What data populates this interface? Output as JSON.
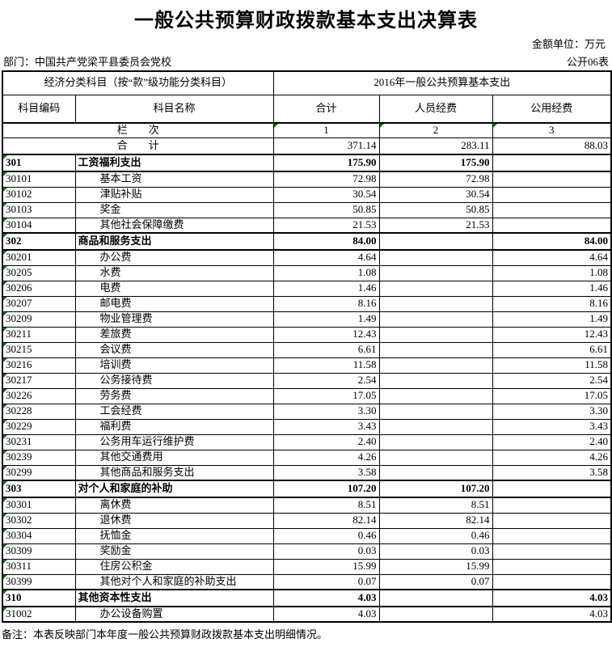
{
  "page": {
    "title": "一般公共预算财政拨款基本支出决算表",
    "unit_label": "金额单位：万元",
    "department": "部门：中国共产党梁平县委员会党校",
    "table_number": "公开06表",
    "note": "备注：本表反映部门本年度一般公共预算财政拨款基本支出明细情况。"
  },
  "table": {
    "header": {
      "left_group": "经济分类科目（按“款”级功能分类科目）",
      "right_group": "2016年一般公共预算基本支出",
      "columns": [
        "科目编码",
        "科目名称",
        "合计",
        "人员经费",
        "公用经费"
      ],
      "lan_ci_label": "栏　　次",
      "col_numbers": [
        "1",
        "2",
        "3"
      ],
      "grand_total_label": "合　　计",
      "grand_totals": {
        "total": "371.14",
        "personnel": "283.11",
        "public": "88.03"
      }
    },
    "rows": [
      {
        "code": "301",
        "name": "工资福利支出",
        "total": "175.90",
        "personnel": "175.90",
        "public": "",
        "section": true
      },
      {
        "code": "30101",
        "name": "基本工资",
        "total": "72.98",
        "personnel": "72.98",
        "public": "",
        "section": false
      },
      {
        "code": "30102",
        "name": "津贴补贴",
        "total": "30.54",
        "personnel": "30.54",
        "public": "",
        "section": false
      },
      {
        "code": "30103",
        "name": "奖金",
        "total": "50.85",
        "personnel": "50.85",
        "public": "",
        "section": false
      },
      {
        "code": "30104",
        "name": "其他社会保障缴费",
        "total": "21.53",
        "personnel": "21.53",
        "public": "",
        "section": false
      },
      {
        "code": "302",
        "name": "商品和服务支出",
        "total": "84.00",
        "personnel": "",
        "public": "84.00",
        "section": true
      },
      {
        "code": "30201",
        "name": "办公费",
        "total": "4.64",
        "personnel": "",
        "public": "4.64",
        "section": false
      },
      {
        "code": "30205",
        "name": "水费",
        "total": "1.08",
        "personnel": "",
        "public": "1.08",
        "section": false
      },
      {
        "code": "30206",
        "name": "电费",
        "total": "1.46",
        "personnel": "",
        "public": "1.46",
        "section": false
      },
      {
        "code": "30207",
        "name": "邮电费",
        "total": "8.16",
        "personnel": "",
        "public": "8.16",
        "section": false
      },
      {
        "code": "30209",
        "name": "物业管理费",
        "total": "1.49",
        "personnel": "",
        "public": "1.49",
        "section": false
      },
      {
        "code": "30211",
        "name": "差旅费",
        "total": "12.43",
        "personnel": "",
        "public": "12.43",
        "section": false
      },
      {
        "code": "30215",
        "name": "会议费",
        "total": "6.61",
        "personnel": "",
        "public": "6.61",
        "section": false
      },
      {
        "code": "30216",
        "name": "培训费",
        "total": "11.58",
        "personnel": "",
        "public": "11.58",
        "section": false
      },
      {
        "code": "30217",
        "name": "公务接待费",
        "total": "2.54",
        "personnel": "",
        "public": "2.54",
        "section": false
      },
      {
        "code": "30226",
        "name": "劳务费",
        "total": "17.05",
        "personnel": "",
        "public": "17.05",
        "section": false
      },
      {
        "code": "30228",
        "name": "工会经费",
        "total": "3.30",
        "personnel": "",
        "public": "3.30",
        "section": false
      },
      {
        "code": "30229",
        "name": "福利费",
        "total": "3.43",
        "personnel": "",
        "public": "3.43",
        "section": false
      },
      {
        "code": "30231",
        "name": "公务用车运行维护费",
        "total": "2.40",
        "personnel": "",
        "public": "2.40",
        "section": false
      },
      {
        "code": "30239",
        "name": "其他交通费用",
        "total": "4.26",
        "personnel": "",
        "public": "4.26",
        "section": false
      },
      {
        "code": "30299",
        "name": "其他商品和服务支出",
        "total": "3.58",
        "personnel": "",
        "public": "3.58",
        "section": false
      },
      {
        "code": "303",
        "name": "对个人和家庭的补助",
        "total": "107.20",
        "personnel": "107.20",
        "public": "",
        "section": true
      },
      {
        "code": "30301",
        "name": "离休费",
        "total": "8.51",
        "personnel": "8.51",
        "public": "",
        "section": false
      },
      {
        "code": "30302",
        "name": "退休费",
        "total": "82.14",
        "personnel": "82.14",
        "public": "",
        "section": false
      },
      {
        "code": "30304",
        "name": "抚恤金",
        "total": "0.46",
        "personnel": "0.46",
        "public": "",
        "section": false
      },
      {
        "code": "30309",
        "name": "奖励金",
        "total": "0.03",
        "personnel": "0.03",
        "public": "",
        "section": false
      },
      {
        "code": "30311",
        "name": "住房公积金",
        "total": "15.99",
        "personnel": "15.99",
        "public": "",
        "section": false
      },
      {
        "code": "30399",
        "name": "其他对个人和家庭的补助支出",
        "total": "0.07",
        "personnel": "0.07",
        "public": "",
        "section": false
      },
      {
        "code": "310",
        "name": "其他资本性支出",
        "total": "4.03",
        "personnel": "",
        "public": "4.03",
        "section": true
      },
      {
        "code": "31002",
        "name": "办公设备购置",
        "total": "4.03",
        "personnel": "",
        "public": "4.03",
        "section": false
      }
    ]
  },
  "colors": {
    "triangle_green": "#077a07",
    "border": "#000000"
  }
}
